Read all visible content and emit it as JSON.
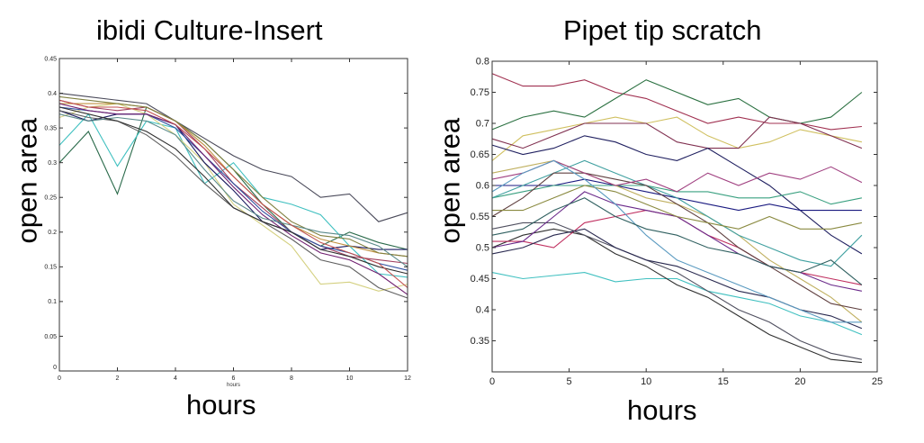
{
  "chart_data": [
    {
      "type": "line",
      "title": "ibidi Culture-Insert",
      "xlabel": "hours",
      "xlabel_small": "hours",
      "ylabel": "open area",
      "xlim": [
        0,
        12
      ],
      "ylim": [
        0,
        0.45
      ],
      "xticks": [
        "0",
        "2",
        "4",
        "6",
        "8",
        "10",
        "12"
      ],
      "yticks": [
        "0",
        "0.05",
        "0.1",
        "0.15",
        "0.2",
        "0.25",
        "0.3",
        "0.35",
        "0.4",
        "0.45"
      ],
      "x": [
        0,
        1,
        2,
        3,
        4,
        5,
        6,
        7,
        8,
        9,
        10,
        11,
        12
      ],
      "series": [
        {
          "color": "#4a4a5a",
          "values": [
            0.4,
            0.395,
            0.39,
            0.385,
            0.36,
            0.335,
            0.31,
            0.29,
            0.28,
            0.25,
            0.255,
            0.215,
            0.228
          ]
        },
        {
          "color": "#2a6a4a",
          "values": [
            0.3,
            0.345,
            0.255,
            0.38,
            0.36,
            0.33,
            0.29,
            0.24,
            0.2,
            0.18,
            0.2,
            0.185,
            0.175
          ]
        },
        {
          "color": "#40c0c0",
          "values": [
            0.325,
            0.37,
            0.295,
            0.36,
            0.35,
            0.27,
            0.3,
            0.25,
            0.24,
            0.225,
            0.18,
            0.14,
            0.135
          ]
        },
        {
          "color": "#d4d080",
          "values": [
            0.365,
            0.38,
            0.385,
            0.37,
            0.34,
            0.3,
            0.24,
            0.21,
            0.18,
            0.125,
            0.128,
            0.115,
            0.125
          ]
        },
        {
          "color": "#1a1a60",
          "values": [
            0.375,
            0.36,
            0.37,
            0.37,
            0.355,
            0.3,
            0.26,
            0.215,
            0.2,
            0.175,
            0.18,
            0.175,
            0.175
          ]
        },
        {
          "color": "#a04060",
          "values": [
            0.39,
            0.38,
            0.375,
            0.38,
            0.36,
            0.32,
            0.27,
            0.235,
            0.2,
            0.18,
            0.165,
            0.16,
            0.155
          ]
        },
        {
          "color": "#c09040",
          "values": [
            0.385,
            0.385,
            0.385,
            0.38,
            0.36,
            0.325,
            0.28,
            0.24,
            0.21,
            0.19,
            0.18,
            0.17,
            0.165
          ]
        },
        {
          "color": "#606060",
          "values": [
            0.375,
            0.365,
            0.36,
            0.34,
            0.31,
            0.27,
            0.235,
            0.215,
            0.19,
            0.16,
            0.15,
            0.12,
            0.105
          ]
        },
        {
          "color": "#3050a0",
          "values": [
            0.38,
            0.375,
            0.37,
            0.37,
            0.35,
            0.31,
            0.27,
            0.23,
            0.2,
            0.18,
            0.17,
            0.155,
            0.145
          ]
        },
        {
          "color": "#808040",
          "values": [
            0.395,
            0.39,
            0.385,
            0.38,
            0.36,
            0.33,
            0.29,
            0.25,
            0.215,
            0.195,
            0.19,
            0.17,
            0.165
          ]
        },
        {
          "color": "#702070",
          "values": [
            0.385,
            0.375,
            0.37,
            0.37,
            0.355,
            0.31,
            0.265,
            0.225,
            0.195,
            0.17,
            0.16,
            0.14,
            0.11
          ]
        },
        {
          "color": "#5a8a8a",
          "values": [
            0.37,
            0.36,
            0.365,
            0.36,
            0.34,
            0.29,
            0.245,
            0.22,
            0.21,
            0.2,
            0.195,
            0.18,
            0.15
          ]
        },
        {
          "color": "#303030",
          "values": [
            0.38,
            0.37,
            0.36,
            0.345,
            0.32,
            0.28,
            0.235,
            0.215,
            0.2,
            0.175,
            0.165,
            0.15,
            0.14
          ]
        },
        {
          "color": "#c05050",
          "values": [
            0.39,
            0.38,
            0.38,
            0.375,
            0.355,
            0.32,
            0.28,
            0.24,
            0.21,
            0.185,
            0.17,
            0.155,
            0.12
          ]
        }
      ]
    },
    {
      "type": "line",
      "title": "Pipet tip scratch",
      "xlabel": "hours",
      "ylabel": "open area",
      "xlim": [
        0,
        25
      ],
      "ylim": [
        0.3,
        0.8
      ],
      "xticks": [
        "0",
        "5",
        "10",
        "15",
        "20",
        "25"
      ],
      "yticks": [
        "0.35",
        "0.4",
        "0.45",
        "0.5",
        "0.55",
        "0.6",
        "0.65",
        "0.7",
        "0.75",
        "0.8"
      ],
      "x": [
        0,
        2,
        4,
        6,
        8,
        10,
        12,
        14,
        16,
        18,
        20,
        22,
        24
      ],
      "series": [
        {
          "color": "#a03050",
          "values": [
            0.78,
            0.76,
            0.76,
            0.77,
            0.75,
            0.74,
            0.72,
            0.7,
            0.71,
            0.7,
            0.7,
            0.69,
            0.695
          ]
        },
        {
          "color": "#2a7040",
          "values": [
            0.69,
            0.71,
            0.72,
            0.71,
            0.74,
            0.77,
            0.75,
            0.73,
            0.74,
            0.71,
            0.7,
            0.71,
            0.75
          ]
        },
        {
          "color": "#d0c060",
          "values": [
            0.64,
            0.68,
            0.69,
            0.7,
            0.71,
            0.7,
            0.71,
            0.68,
            0.66,
            0.67,
            0.69,
            0.68,
            0.67
          ]
        },
        {
          "color": "#803050",
          "values": [
            0.675,
            0.66,
            0.68,
            0.7,
            0.7,
            0.7,
            0.67,
            0.66,
            0.66,
            0.71,
            0.7,
            0.68,
            0.66
          ]
        },
        {
          "color": "#202060",
          "values": [
            0.665,
            0.65,
            0.66,
            0.68,
            0.67,
            0.65,
            0.64,
            0.66,
            0.63,
            0.6,
            0.56,
            0.52,
            0.49
          ]
        },
        {
          "color": "#40c0c0",
          "values": [
            0.46,
            0.45,
            0.455,
            0.46,
            0.445,
            0.45,
            0.45,
            0.43,
            0.42,
            0.41,
            0.39,
            0.38,
            0.36
          ]
        },
        {
          "color": "#303030",
          "values": [
            0.5,
            0.52,
            0.53,
            0.52,
            0.49,
            0.47,
            0.44,
            0.42,
            0.39,
            0.36,
            0.34,
            0.32,
            0.315
          ]
        },
        {
          "color": "#505060",
          "values": [
            0.53,
            0.54,
            0.54,
            0.52,
            0.5,
            0.48,
            0.46,
            0.43,
            0.4,
            0.38,
            0.35,
            0.33,
            0.32
          ]
        },
        {
          "color": "#1a1a80",
          "values": [
            0.6,
            0.6,
            0.6,
            0.61,
            0.6,
            0.59,
            0.58,
            0.57,
            0.56,
            0.57,
            0.56,
            0.56,
            0.56
          ]
        },
        {
          "color": "#3aa080",
          "values": [
            0.58,
            0.59,
            0.6,
            0.6,
            0.6,
            0.6,
            0.59,
            0.59,
            0.58,
            0.58,
            0.59,
            0.57,
            0.58
          ]
        },
        {
          "color": "#c03060",
          "values": [
            0.51,
            0.51,
            0.5,
            0.54,
            0.55,
            0.56,
            0.55,
            0.52,
            0.5,
            0.47,
            0.46,
            0.45,
            0.44
          ]
        },
        {
          "color": "#6a2a8a",
          "values": [
            0.5,
            0.51,
            0.55,
            0.59,
            0.57,
            0.56,
            0.55,
            0.52,
            0.49,
            0.47,
            0.46,
            0.44,
            0.43
          ]
        },
        {
          "color": "#c0b060",
          "values": [
            0.62,
            0.63,
            0.64,
            0.62,
            0.6,
            0.58,
            0.57,
            0.55,
            0.52,
            0.48,
            0.45,
            0.42,
            0.38
          ]
        },
        {
          "color": "#40a0a0",
          "values": [
            0.58,
            0.6,
            0.62,
            0.64,
            0.62,
            0.6,
            0.58,
            0.55,
            0.52,
            0.5,
            0.48,
            0.47,
            0.52
          ]
        },
        {
          "color": "#604040",
          "values": [
            0.55,
            0.58,
            0.62,
            0.62,
            0.61,
            0.6,
            0.57,
            0.54,
            0.5,
            0.47,
            0.44,
            0.41,
            0.4
          ]
        },
        {
          "color": "#8a8a40",
          "values": [
            0.56,
            0.56,
            0.58,
            0.6,
            0.59,
            0.57,
            0.55,
            0.54,
            0.53,
            0.55,
            0.53,
            0.53,
            0.54
          ]
        },
        {
          "color": "#2a2a50",
          "values": [
            0.49,
            0.5,
            0.52,
            0.53,
            0.5,
            0.48,
            0.47,
            0.45,
            0.43,
            0.42,
            0.4,
            0.39,
            0.37
          ]
        },
        {
          "color": "#a04080",
          "values": [
            0.61,
            0.62,
            0.64,
            0.62,
            0.6,
            0.61,
            0.59,
            0.62,
            0.6,
            0.62,
            0.61,
            0.63,
            0.605
          ]
        },
        {
          "color": "#5a9ac0",
          "values": [
            0.59,
            0.62,
            0.64,
            0.61,
            0.57,
            0.52,
            0.48,
            0.46,
            0.44,
            0.42,
            0.4,
            0.38,
            0.38
          ]
        },
        {
          "color": "#306060",
          "values": [
            0.52,
            0.53,
            0.56,
            0.58,
            0.55,
            0.53,
            0.52,
            0.5,
            0.49,
            0.47,
            0.46,
            0.48,
            0.44
          ]
        }
      ]
    }
  ]
}
